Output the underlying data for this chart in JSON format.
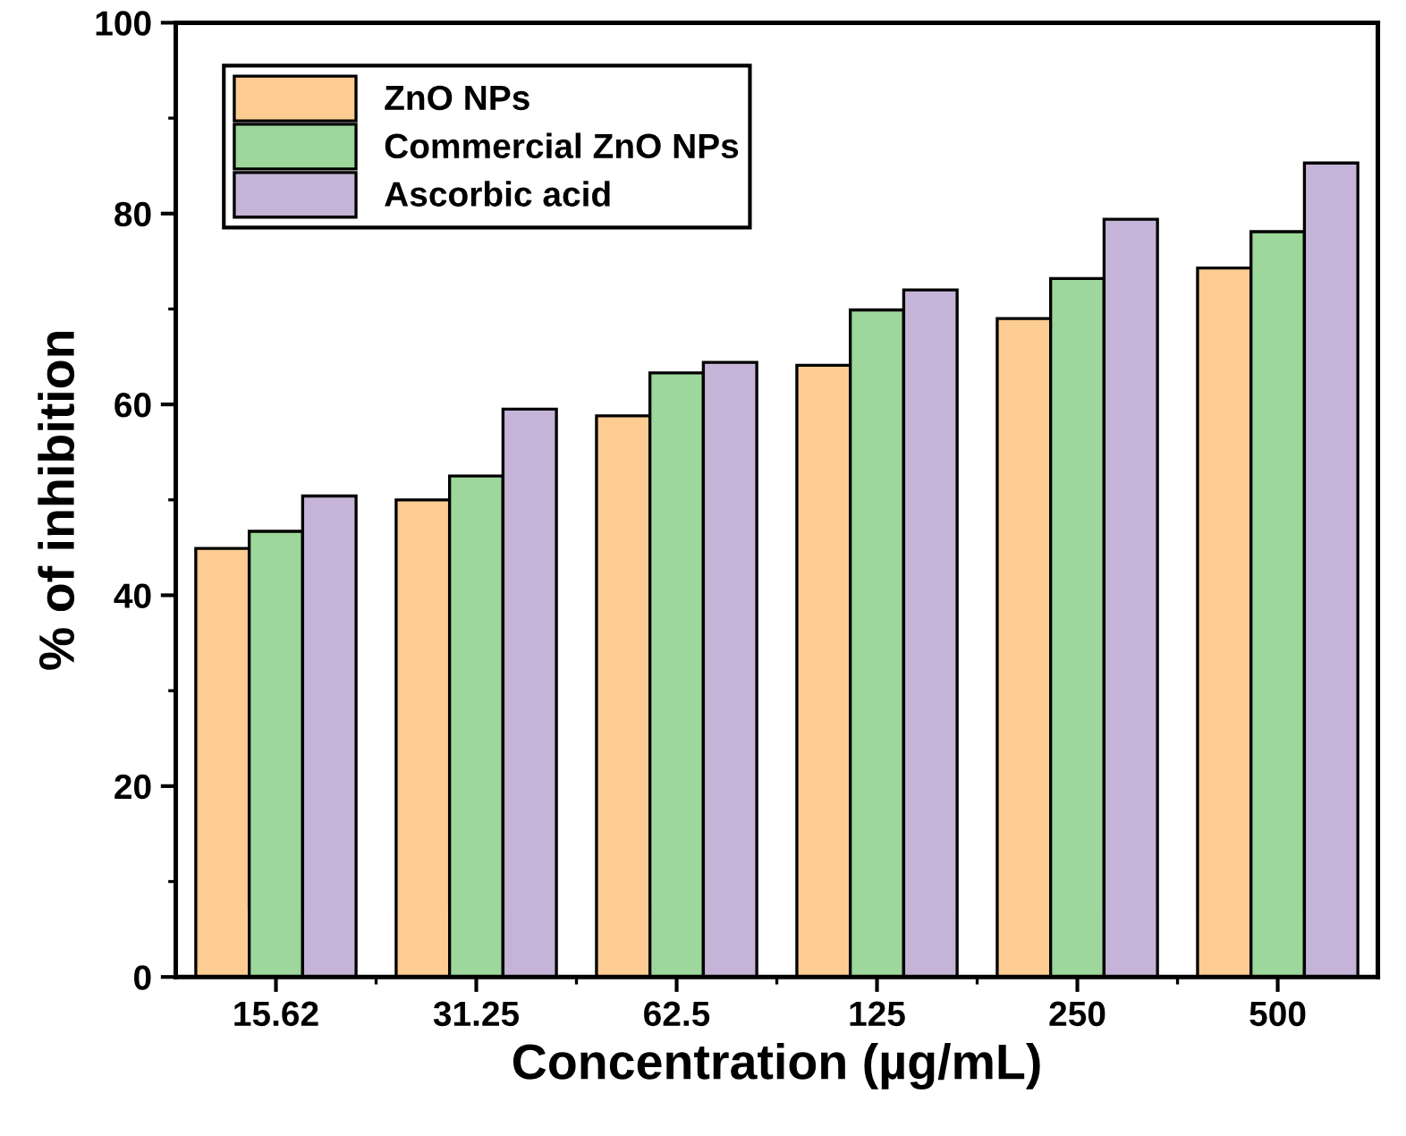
{
  "chart_data": {
    "type": "bar",
    "xlabel": "Concentration (µg/mL)",
    "ylabel": "% of inhibition",
    "categories": [
      "15.62",
      "31.25",
      "62.5",
      "125",
      "250",
      "500"
    ],
    "series": [
      {
        "name": "ZnO NPs",
        "color": "#fdcc92",
        "values": [
          44.9,
          50.0,
          58.8,
          64.1,
          69.0,
          74.3
        ]
      },
      {
        "name": "Commercial ZnO NPs",
        "color": "#9dd79b",
        "values": [
          46.7,
          52.5,
          63.3,
          69.9,
          73.2,
          78.1
        ]
      },
      {
        "name": "Ascorbic acid",
        "color": "#c5b4d8",
        "values": [
          50.4,
          59.5,
          64.4,
          72.0,
          79.4,
          85.3
        ]
      }
    ],
    "ylim": [
      0,
      100
    ],
    "yticks": [
      0,
      20,
      40,
      60,
      80,
      100
    ],
    "grid": false,
    "legend": "top left"
  }
}
